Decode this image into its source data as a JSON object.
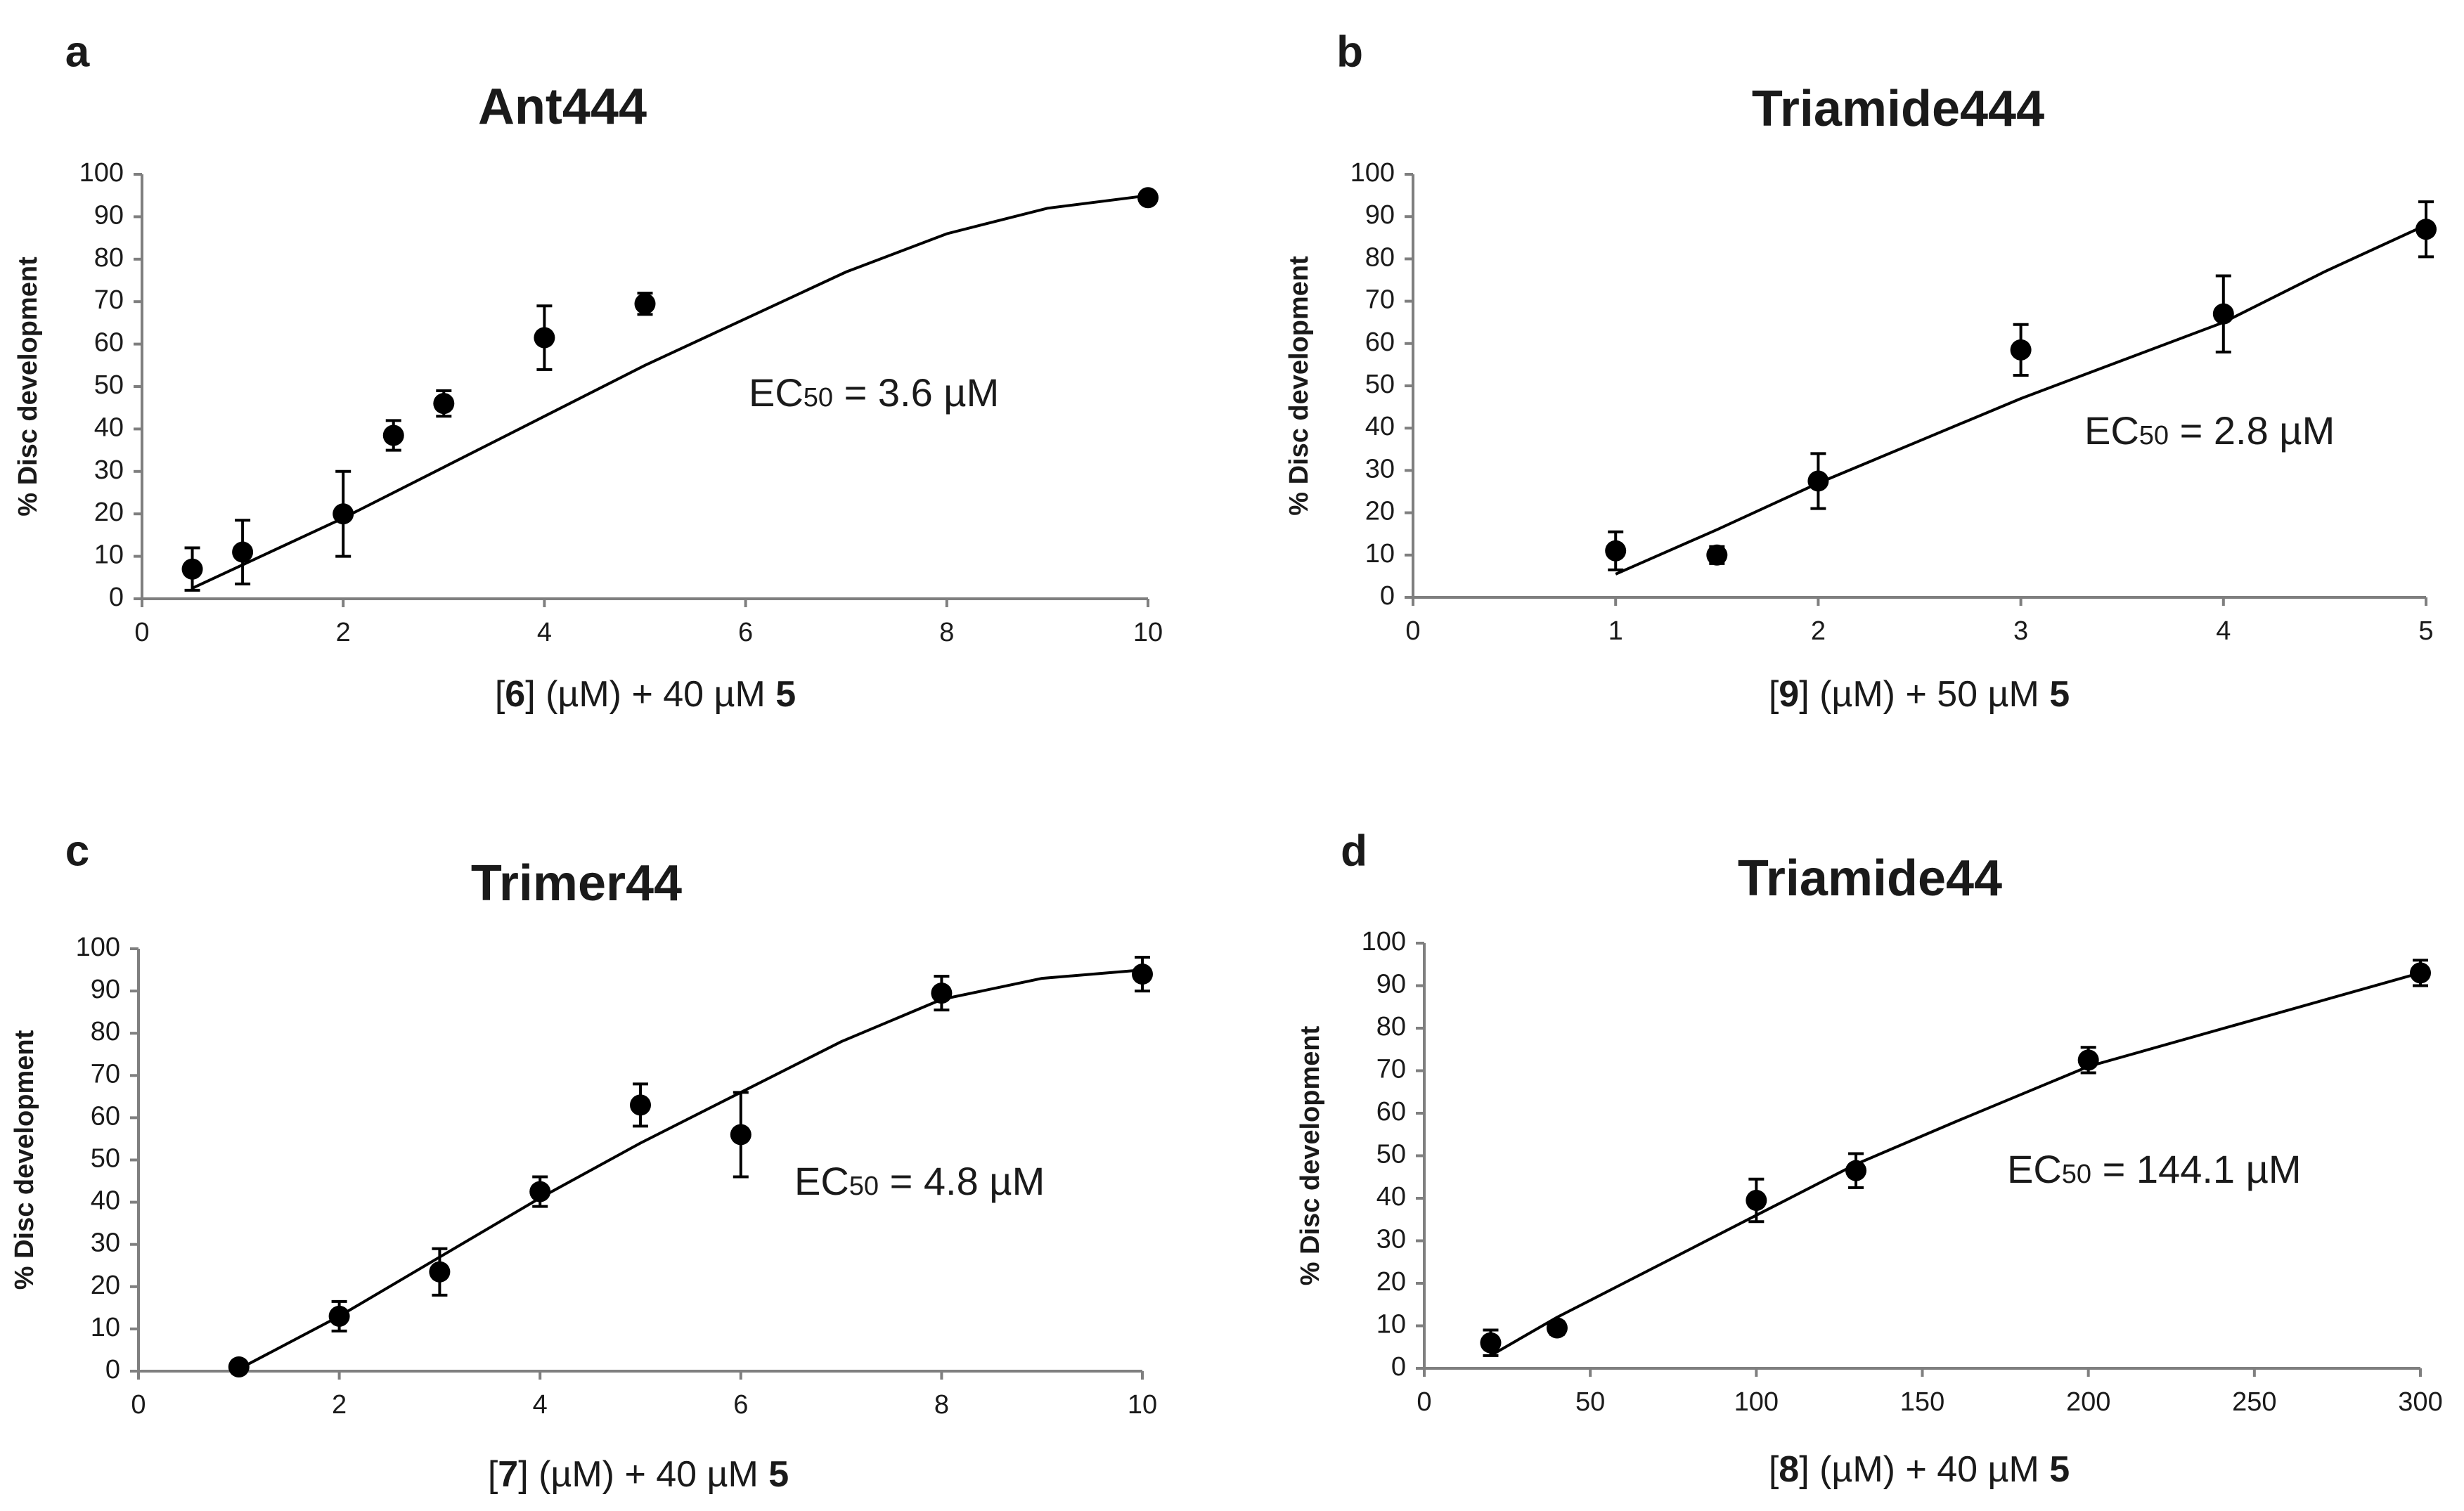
{
  "chart_data": [
    {
      "panel": "a",
      "type": "scatter",
      "title": "Ant444",
      "ylabel": "% Disc development",
      "xlabel": {
        "pre": "[",
        "compound": "6",
        "mid": "] (µM) + 40 µM ",
        "reagent": "5"
      },
      "ec50": {
        "prefix": "EC",
        "sub": "50",
        "value": " = 3.6 µM"
      },
      "xlim": [
        0,
        10
      ],
      "ylim": [
        0,
        100
      ],
      "xticks": [
        0,
        2,
        4,
        6,
        8,
        10
      ],
      "yticks": [
        0,
        10,
        20,
        30,
        40,
        50,
        60,
        70,
        80,
        90,
        100
      ],
      "points": [
        {
          "x": 0.5,
          "y": 7,
          "err": 5
        },
        {
          "x": 1,
          "y": 11,
          "err": 7.5
        },
        {
          "x": 2,
          "y": 20,
          "err": 10
        },
        {
          "x": 2.5,
          "y": 38.5,
          "err": 3.5
        },
        {
          "x": 3,
          "y": 46,
          "err": 3
        },
        {
          "x": 4,
          "y": 61.5,
          "err": 7.5
        },
        {
          "x": 5,
          "y": 69.5,
          "err": 2.5
        },
        {
          "x": 10,
          "y": 94.5,
          "err": 0
        }
      ],
      "fit": [
        [
          0.5,
          2.5
        ],
        [
          1,
          8
        ],
        [
          2,
          19
        ],
        [
          3,
          31
        ],
        [
          4,
          43
        ],
        [
          5,
          55
        ],
        [
          6,
          66
        ],
        [
          7,
          77
        ],
        [
          8,
          86
        ],
        [
          9,
          92
        ],
        [
          10,
          95
        ]
      ]
    },
    {
      "panel": "b",
      "type": "scatter",
      "title": "Triamide444",
      "ylabel": "% Disc development",
      "xlabel": {
        "pre": "[",
        "compound": "9",
        "mid": "] (µM) + 50 µM ",
        "reagent": "5"
      },
      "ec50": {
        "prefix": "EC",
        "sub": "50",
        "value": " = 2.8 µM"
      },
      "xlim": [
        0,
        5
      ],
      "ylim": [
        0,
        100
      ],
      "xticks": [
        0,
        1,
        2,
        3,
        4,
        5
      ],
      "yticks": [
        0,
        10,
        20,
        30,
        40,
        50,
        60,
        70,
        80,
        90,
        100
      ],
      "points": [
        {
          "x": 1,
          "y": 11,
          "err": 4.5
        },
        {
          "x": 1.5,
          "y": 10,
          "err": 2
        },
        {
          "x": 2,
          "y": 27.5,
          "err": 6.5
        },
        {
          "x": 3,
          "y": 58.5,
          "err": 6
        },
        {
          "x": 4,
          "y": 67,
          "err": 9
        },
        {
          "x": 5,
          "y": 87,
          "err": 6.5
        }
      ],
      "fit": [
        [
          1,
          5.5
        ],
        [
          1.5,
          16
        ],
        [
          2,
          27
        ],
        [
          2.5,
          37
        ],
        [
          3,
          47
        ],
        [
          3.5,
          56
        ],
        [
          4,
          65
        ],
        [
          4.5,
          77
        ],
        [
          5,
          88
        ]
      ]
    },
    {
      "panel": "c",
      "type": "scatter",
      "title": "Trimer44",
      "ylabel": "% Disc development",
      "xlabel": {
        "pre": "[",
        "compound": "7",
        "mid": "] (µM) + 40 µM ",
        "reagent": "5"
      },
      "ec50": {
        "prefix": "EC",
        "sub": "50",
        "value": " = 4.8 µM"
      },
      "xlim": [
        0,
        10
      ],
      "ylim": [
        0,
        100
      ],
      "xticks": [
        0,
        2,
        4,
        6,
        8,
        10
      ],
      "yticks": [
        0,
        10,
        20,
        30,
        40,
        50,
        60,
        70,
        80,
        90,
        100
      ],
      "points": [
        {
          "x": 1,
          "y": 1,
          "err": 0
        },
        {
          "x": 2,
          "y": 13,
          "err": 3.5
        },
        {
          "x": 3,
          "y": 23.5,
          "err": 5.5
        },
        {
          "x": 4,
          "y": 42.5,
          "err": 3.5
        },
        {
          "x": 5,
          "y": 63,
          "err": 5
        },
        {
          "x": 6,
          "y": 56,
          "err": 10
        },
        {
          "x": 8,
          "y": 89.5,
          "err": 4
        },
        {
          "x": 10,
          "y": 94,
          "err": 4
        }
      ],
      "fit": [
        [
          1,
          0.5
        ],
        [
          2,
          13
        ],
        [
          3,
          27
        ],
        [
          4,
          41
        ],
        [
          5,
          54
        ],
        [
          6,
          66
        ],
        [
          7,
          78
        ],
        [
          8,
          88
        ],
        [
          9,
          93
        ],
        [
          10,
          95
        ]
      ]
    },
    {
      "panel": "d",
      "type": "scatter",
      "title": "Triamide44",
      "ylabel": "% Disc development",
      "xlabel": {
        "pre": "[",
        "compound": "8",
        "mid": "] (µM) + 40 µM ",
        "reagent": "5"
      },
      "ec50": {
        "prefix": "EC",
        "sub": "50",
        "value": " = 144.1 µM"
      },
      "xlim": [
        0,
        300
      ],
      "ylim": [
        0,
        100
      ],
      "xticks": [
        0,
        50,
        100,
        150,
        200,
        250,
        300
      ],
      "yticks": [
        0,
        10,
        20,
        30,
        40,
        50,
        60,
        70,
        80,
        90,
        100
      ],
      "points": [
        {
          "x": 20,
          "y": 6,
          "err": 3
        },
        {
          "x": 40,
          "y": 9.5,
          "err": 1.5
        },
        {
          "x": 100,
          "y": 39.5,
          "err": 5
        },
        {
          "x": 130,
          "y": 46.5,
          "err": 4
        },
        {
          "x": 200,
          "y": 72.5,
          "err": 3
        },
        {
          "x": 300,
          "y": 93,
          "err": 3
        }
      ],
      "fit": [
        [
          20,
          3
        ],
        [
          40,
          12
        ],
        [
          60,
          20
        ],
        [
          80,
          28
        ],
        [
          100,
          36
        ],
        [
          130,
          48
        ],
        [
          160,
          58
        ],
        [
          200,
          71
        ],
        [
          250,
          82
        ],
        [
          300,
          93
        ]
      ]
    }
  ]
}
